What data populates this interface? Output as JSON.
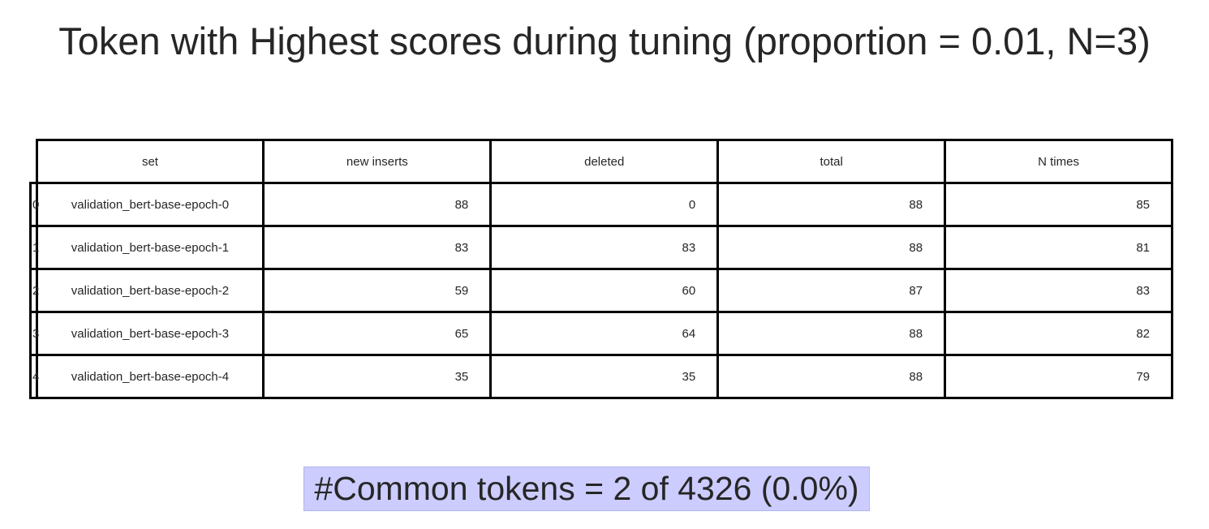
{
  "chart_data": {
    "type": "table",
    "title": "Token with Highest scores during tuning (proportion = 0.01, N=3)",
    "columns": [
      "set",
      "new inserts",
      "deleted",
      "total",
      "N times"
    ],
    "rows": [
      {
        "index": "0",
        "set": "validation_bert-base-epoch-0",
        "new_inserts": "88",
        "deleted": "0",
        "total": "88",
        "n_times": "85"
      },
      {
        "index": "1",
        "set": "validation_bert-base-epoch-1",
        "new_inserts": "83",
        "deleted": "83",
        "total": "88",
        "n_times": "81"
      },
      {
        "index": "2",
        "set": "validation_bert-base-epoch-2",
        "new_inserts": "59",
        "deleted": "60",
        "total": "87",
        "n_times": "83"
      },
      {
        "index": "3",
        "set": "validation_bert-base-epoch-3",
        "new_inserts": "65",
        "deleted": "64",
        "total": "88",
        "n_times": "82"
      },
      {
        "index": "4",
        "set": "validation_bert-base-epoch-4",
        "new_inserts": "35",
        "deleted": "35",
        "total": "88",
        "n_times": "79"
      }
    ],
    "footer_text": "#Common tokens = 2 of 4326 (0.0%)",
    "footer_background": "#ccccff"
  }
}
